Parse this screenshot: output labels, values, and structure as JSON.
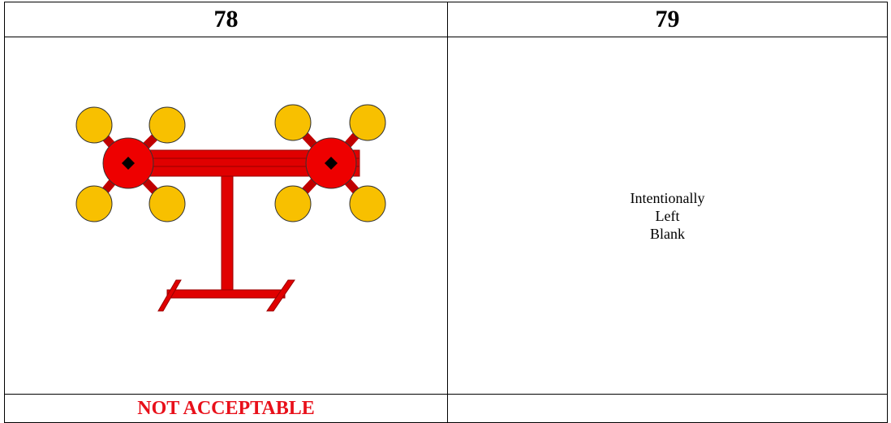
{
  "table": {
    "header": [
      "78",
      "79"
    ],
    "blank_text": [
      "Intentionally",
      "Left",
      "Blank"
    ],
    "footer": [
      "NOT ACCEPTABLE",
      ""
    ]
  }
}
